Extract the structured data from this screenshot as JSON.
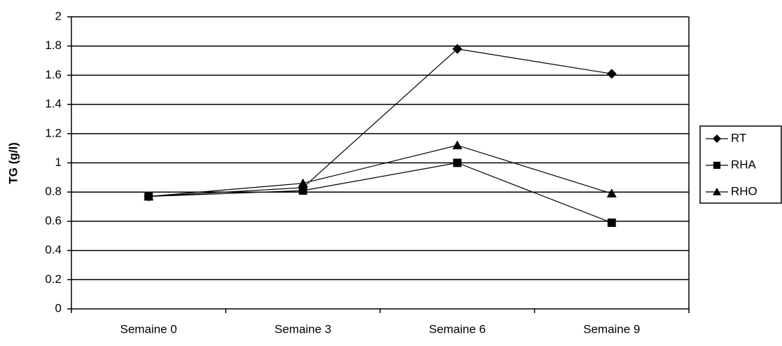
{
  "chart_data": {
    "type": "line",
    "y_label": "TG (g/l)",
    "categories": [
      "Semaine 0",
      "Semaine 3",
      "Semaine 6",
      "Semaine 9"
    ],
    "series": [
      {
        "name": "RT",
        "color": "#000000",
        "marker": "diamond",
        "values": [
          0.77,
          0.83,
          1.78,
          1.61
        ]
      },
      {
        "name": "RHA",
        "color": "#000000",
        "marker": "square",
        "values": [
          0.77,
          0.81,
          1.0,
          0.59
        ]
      },
      {
        "name": "RHO",
        "color": "#000000",
        "marker": "triangle",
        "values": [
          0.77,
          0.86,
          1.12,
          0.79
        ]
      }
    ],
    "ylim": [
      0,
      2
    ],
    "yticks": [
      0,
      0.2,
      0.4,
      0.6,
      0.8,
      1,
      1.2,
      1.4,
      1.6,
      1.8,
      2
    ],
    "grid": true,
    "legend": "right"
  }
}
